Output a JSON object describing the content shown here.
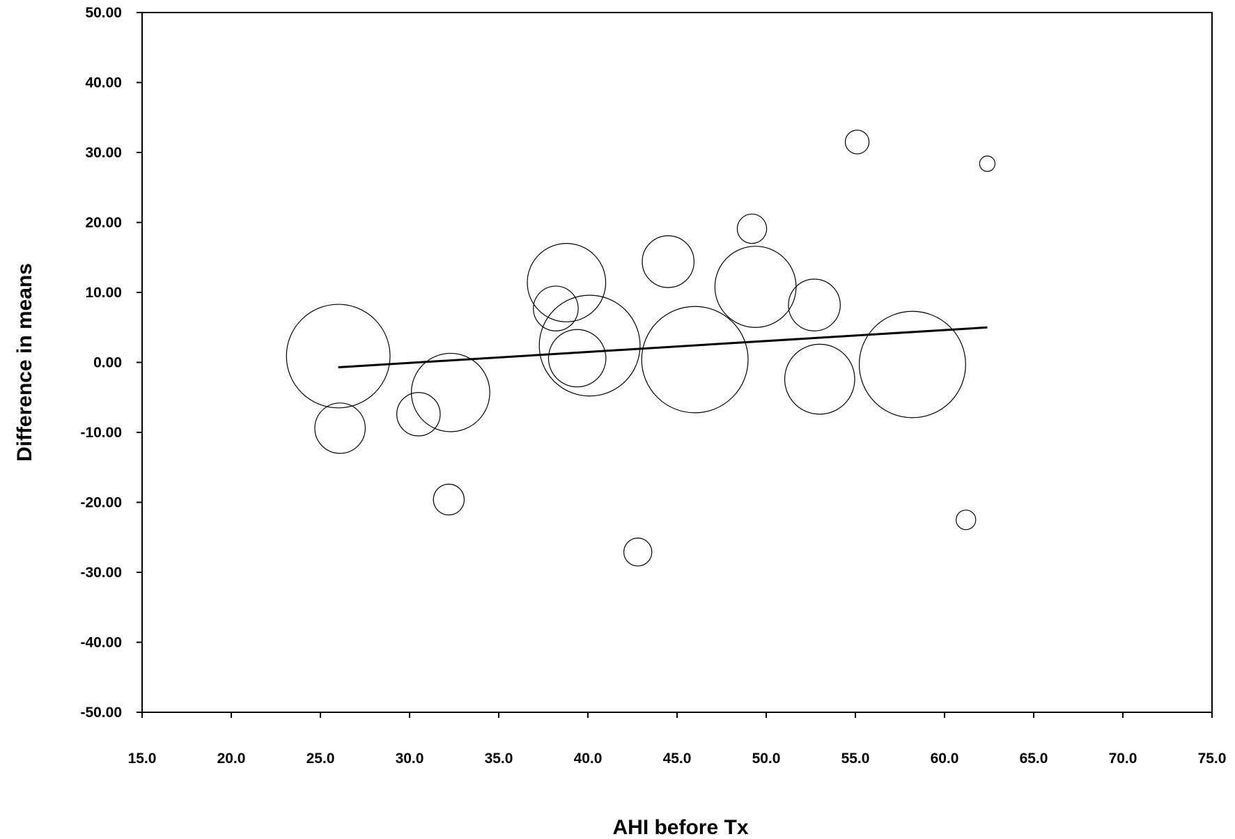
{
  "chart_data": {
    "type": "scatter",
    "title": "",
    "xlabel": "AHI before Tx",
    "ylabel": "Difference in means",
    "xlim": [
      15.0,
      75.0
    ],
    "ylim": [
      -50.0,
      50.0
    ],
    "x_ticks": [
      "15.0",
      "20.0",
      "25.0",
      "30.0",
      "35.0",
      "40.0",
      "45.0",
      "50.0",
      "55.0",
      "60.0",
      "65.0",
      "70.0",
      "75.0"
    ],
    "y_ticks": [
      "50.00",
      "40.00",
      "30.00",
      "20.00",
      "10.00",
      "0.00",
      "-10.00",
      "-20.00",
      "-30.00",
      "-40.00",
      "-50.00"
    ],
    "grid": false,
    "legend": "none",
    "points": [
      {
        "x": 26.0,
        "y": 0.9,
        "size": 7.4
      },
      {
        "x": 26.1,
        "y": -9.4,
        "size": 3.6
      },
      {
        "x": 30.5,
        "y": -7.4,
        "size": 3.1
      },
      {
        "x": 32.3,
        "y": -4.3,
        "size": 5.6
      },
      {
        "x": 32.2,
        "y": -19.6,
        "size": 2.2
      },
      {
        "x": 38.2,
        "y": 7.7,
        "size": 3.2
      },
      {
        "x": 38.8,
        "y": 11.4,
        "size": 5.6
      },
      {
        "x": 40.1,
        "y": 2.4,
        "size": 7.2
      },
      {
        "x": 39.4,
        "y": 0.6,
        "size": 4.1
      },
      {
        "x": 42.8,
        "y": -27.1,
        "size": 2.0
      },
      {
        "x": 44.5,
        "y": 14.4,
        "size": 3.7
      },
      {
        "x": 46.0,
        "y": 0.4,
        "size": 7.6
      },
      {
        "x": 49.2,
        "y": 19.1,
        "size": 2.1
      },
      {
        "x": 49.4,
        "y": 10.8,
        "size": 5.8
      },
      {
        "x": 52.7,
        "y": 8.2,
        "size": 3.7
      },
      {
        "x": 53.0,
        "y": -2.4,
        "size": 5.0
      },
      {
        "x": 55.1,
        "y": 31.5,
        "size": 1.7
      },
      {
        "x": 58.2,
        "y": -0.3,
        "size": 7.6
      },
      {
        "x": 61.2,
        "y": -22.5,
        "size": 1.4
      },
      {
        "x": 62.4,
        "y": 28.4,
        "size": 1.1
      }
    ],
    "regression_line": {
      "x": [
        26.0,
        62.4
      ],
      "y": [
        -0.7,
        5.0
      ]
    }
  }
}
